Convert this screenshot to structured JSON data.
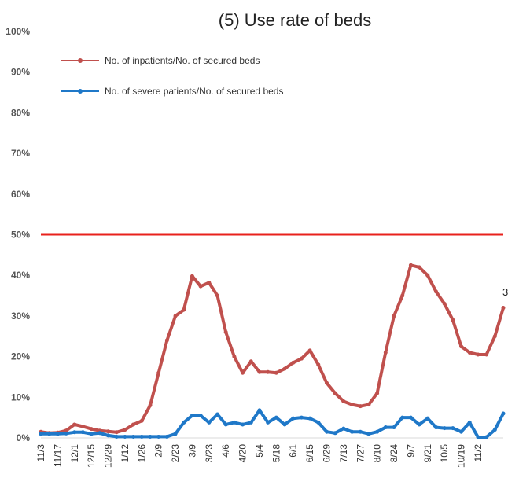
{
  "chart_data": {
    "type": "line",
    "title": "(5) Use rate of beds",
    "xlabel": "",
    "ylabel": "",
    "ylim": [
      0,
      100
    ],
    "yticks": [
      "0%",
      "10%",
      "20%",
      "30%",
      "40%",
      "50%",
      "60%",
      "70%",
      "80%",
      "90%",
      "100%"
    ],
    "x_tick_labels": [
      "11/3",
      "11/17",
      "12/1",
      "12/15",
      "12/29",
      "1/12",
      "1/26",
      "2/9",
      "2/23",
      "3/9",
      "3/23",
      "4/6",
      "4/20",
      "5/4",
      "5/18",
      "6/1",
      "6/15",
      "6/29",
      "7/13",
      "7/27",
      "8/10",
      "8/24",
      "9/7",
      "9/21",
      "10/5",
      "10/19",
      "11/2"
    ],
    "reference_line": {
      "y": 50,
      "color": "#e8211c"
    },
    "annotation": "3",
    "legend_position": "top-left",
    "grid": false,
    "series": [
      {
        "name": "No. of inpatients/No. of secured beds",
        "color": "#c0504d",
        "values": [
          1.5,
          1.2,
          1.3,
          1.8,
          3.3,
          2.8,
          2.2,
          1.8,
          1.6,
          1.4,
          2.0,
          3.3,
          4.2,
          8.0,
          16.0,
          24.0,
          30.0,
          31.5,
          39.8,
          37.3,
          38.2,
          35.0,
          26.0,
          20.0,
          16.0,
          18.8,
          16.2,
          16.2,
          16.0,
          17.0,
          18.5,
          19.5,
          21.5,
          18.0,
          13.5,
          11.0,
          9.0,
          8.2,
          7.8,
          8.2,
          11.0,
          21.0,
          30.0,
          35.0,
          42.5,
          42.0,
          40.0,
          36.0,
          33.0,
          29.0,
          22.5,
          21.0,
          20.5,
          20.5,
          25.0,
          32.0
        ]
      },
      {
        "name": "No. of severe patients/No. of secured beds",
        "color": "#1f78c8",
        "values": [
          1.0,
          1.0,
          1.0,
          1.1,
          1.4,
          1.4,
          1.0,
          1.2,
          0.6,
          0.3,
          0.3,
          0.3,
          0.3,
          0.3,
          0.3,
          0.3,
          1.0,
          3.8,
          5.5,
          5.5,
          3.8,
          5.8,
          3.3,
          3.8,
          3.3,
          3.8,
          6.8,
          3.8,
          5.0,
          3.3,
          4.8,
          5.0,
          4.8,
          3.8,
          1.5,
          1.2,
          2.3,
          1.5,
          1.5,
          1.0,
          1.5,
          2.6,
          2.6,
          5.0,
          5.0,
          3.3,
          4.8,
          2.6,
          2.4,
          2.4,
          1.5,
          3.8,
          0.2,
          0.2,
          2.0,
          6.0
        ]
      }
    ]
  }
}
